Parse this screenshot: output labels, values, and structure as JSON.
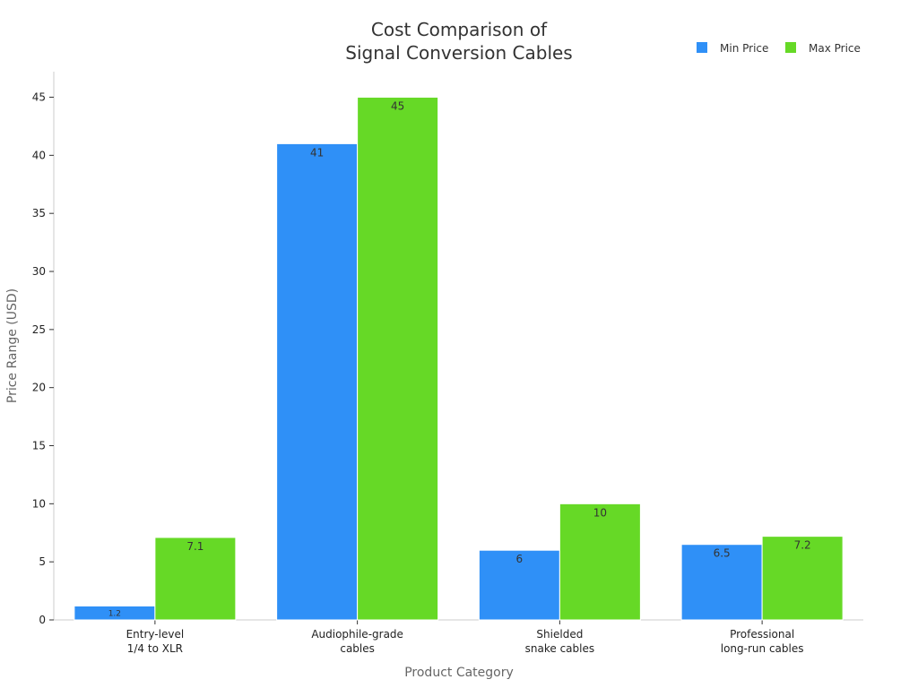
{
  "chart_data": {
    "type": "bar",
    "title_lines": [
      "Cost Comparison of",
      "Signal Conversion Cables"
    ],
    "xlabel": "Product Category",
    "ylabel": "Price Range (USD)",
    "categories": [
      [
        "Entry-level",
        "1/4 to XLR"
      ],
      [
        "Audiophile-grade",
        "cables"
      ],
      [
        "Shielded",
        "snake cables"
      ],
      [
        "Professional",
        "long-run cables"
      ]
    ],
    "series": [
      {
        "name": "Min Price",
        "color": "#2f90f7",
        "values": [
          1.2,
          41,
          6,
          6.5
        ],
        "labels": [
          "1.2",
          "41",
          "6",
          "6.5"
        ]
      },
      {
        "name": "Max Price",
        "color": "#66d926",
        "values": [
          7.1,
          45,
          10,
          7.2
        ],
        "labels": [
          "7.1",
          "45",
          "10",
          "7.2"
        ]
      }
    ],
    "ylim": [
      0,
      47.2
    ],
    "yticks": [
      0,
      5,
      10,
      15,
      20,
      25,
      30,
      35,
      40,
      45
    ],
    "legend_position": "top-right",
    "grid": false
  }
}
